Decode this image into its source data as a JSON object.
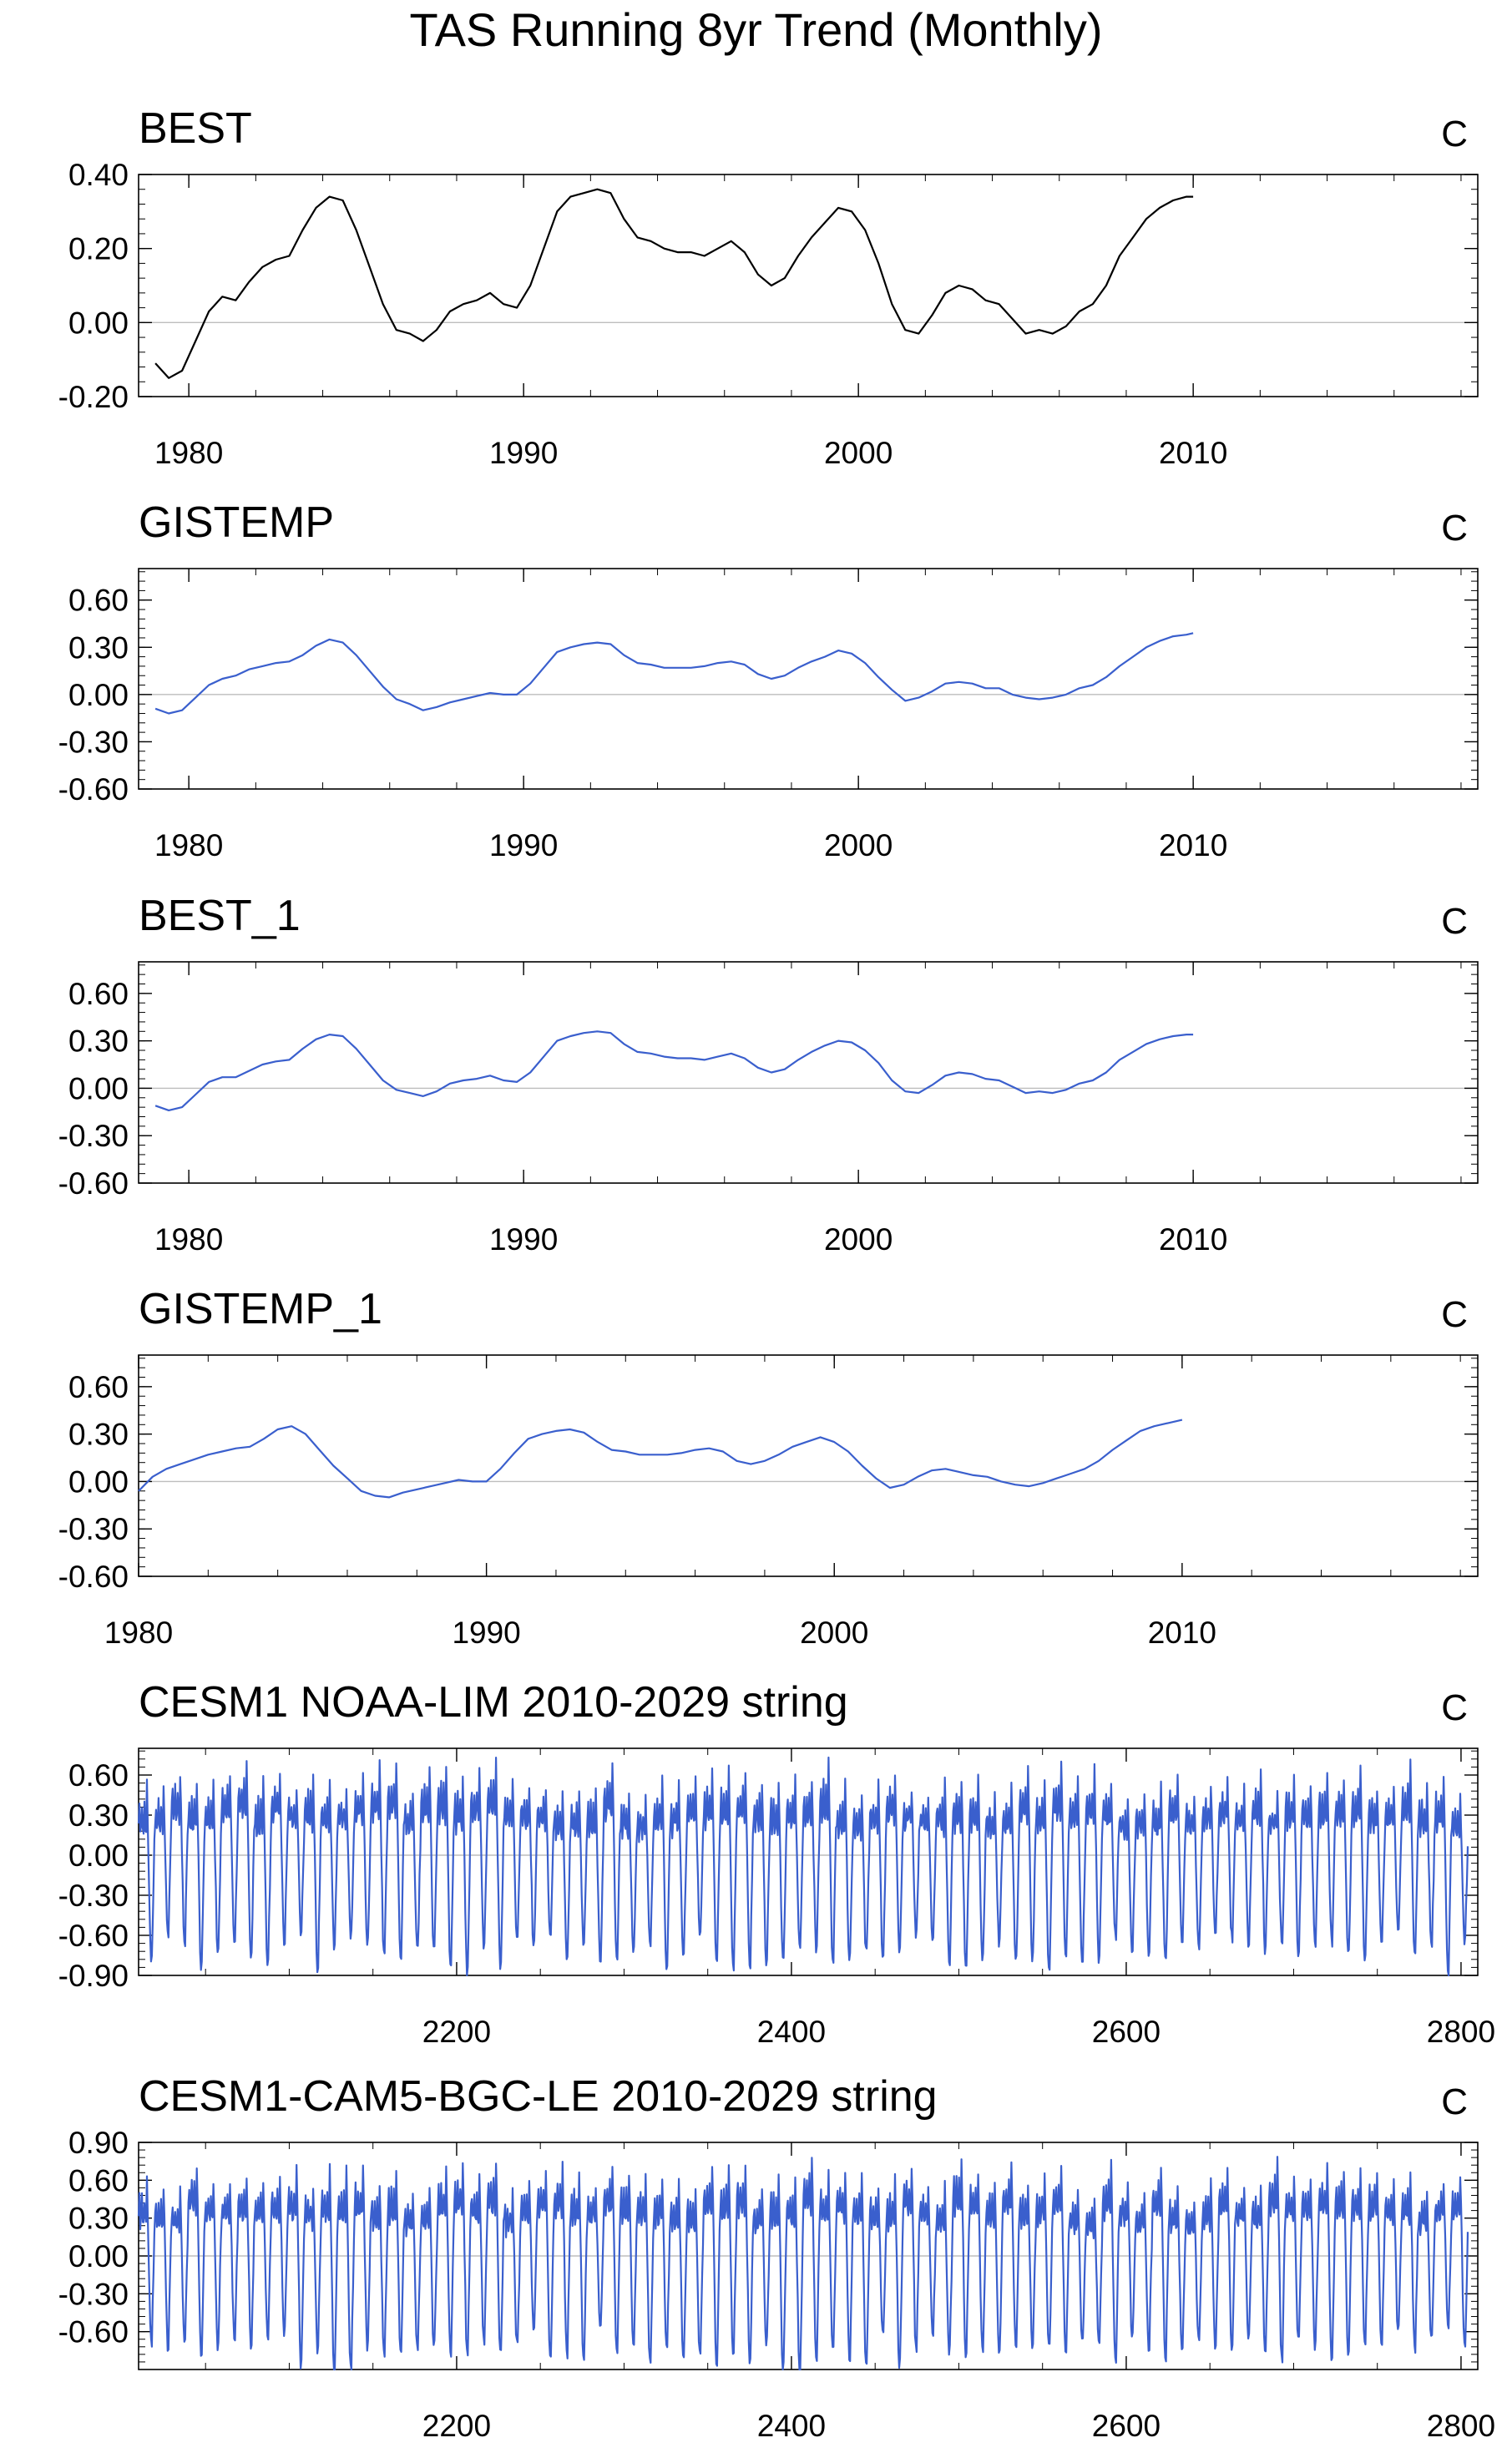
{
  "title": "TAS Running 8yr Trend (Monthly)",
  "chart_data": [
    {
      "type": "line",
      "title": "BEST",
      "units": "C",
      "xlim": [
        1978.5,
        2018.5
      ],
      "ylim": [
        -0.2,
        0.4
      ],
      "xticks": [
        1980,
        1990,
        2000,
        2010
      ],
      "xtick_labels": [
        "1980",
        "1990",
        "2000",
        "2010"
      ],
      "yticks": [
        -0.2,
        0.0,
        0.2,
        0.4
      ],
      "ytick_labels": [
        "-0.20",
        "0.00",
        "0.20",
        "0.40"
      ],
      "zero_line": true,
      "color": "#000000",
      "series": [
        {
          "x": [
            1979.0,
            1979.4,
            1979.8,
            1980.2,
            1980.6,
            1981.0,
            1981.4,
            1981.8,
            1982.2,
            1982.6,
            1983.0,
            1983.4,
            1983.8,
            1984.2,
            1984.6,
            1985.0,
            1985.4,
            1985.8,
            1986.2,
            1986.6,
            1987.0,
            1987.4,
            1987.8,
            1988.2,
            1988.6,
            1989.0,
            1989.4,
            1989.8,
            1990.2,
            1990.6,
            1991.0,
            1991.4,
            1991.8,
            1992.2,
            1992.6,
            1993.0,
            1993.4,
            1993.8,
            1994.2,
            1994.6,
            1995.0,
            1995.4,
            1995.8,
            1996.2,
            1996.6,
            1997.0,
            1997.4,
            1997.8,
            1998.2,
            1998.6,
            1999.0,
            1999.4,
            1999.8,
            2000.2,
            2000.6,
            2001.0,
            2001.4,
            2001.8,
            2002.2,
            2002.6,
            2003.0,
            2003.4,
            2003.8,
            2004.2,
            2004.6,
            2005.0,
            2005.4,
            2005.8,
            2006.2,
            2006.6,
            2007.0,
            2007.4,
            2007.8,
            2008.2,
            2008.6,
            2009.0,
            2009.4,
            2009.8,
            2010.0
          ],
          "y": [
            -0.11,
            -0.15,
            -0.13,
            -0.05,
            0.03,
            0.07,
            0.06,
            0.11,
            0.15,
            0.17,
            0.18,
            0.25,
            0.31,
            0.34,
            0.33,
            0.25,
            0.15,
            0.05,
            -0.02,
            -0.03,
            -0.05,
            -0.02,
            0.03,
            0.05,
            0.06,
            0.08,
            0.05,
            0.04,
            0.1,
            0.2,
            0.3,
            0.34,
            0.35,
            0.36,
            0.35,
            0.28,
            0.23,
            0.22,
            0.2,
            0.19,
            0.19,
            0.18,
            0.2,
            0.22,
            0.19,
            0.13,
            0.1,
            0.12,
            0.18,
            0.23,
            0.27,
            0.31,
            0.3,
            0.25,
            0.16,
            0.05,
            -0.02,
            -0.03,
            0.02,
            0.08,
            0.1,
            0.09,
            0.06,
            0.05,
            0.01,
            -0.03,
            -0.02,
            -0.03,
            -0.01,
            0.03,
            0.05,
            0.1,
            0.18,
            0.23,
            0.28,
            0.31,
            0.33,
            0.34,
            0.34
          ]
        }
      ]
    },
    {
      "type": "line",
      "title": "GISTEMP",
      "units": "C",
      "xlim": [
        1978.5,
        2018.5
      ],
      "ylim": [
        -0.6,
        0.8
      ],
      "xticks": [
        1980,
        1990,
        2000,
        2010
      ],
      "xtick_labels": [
        "1980",
        "1990",
        "2000",
        "2010"
      ],
      "yticks": [
        -0.6,
        -0.3,
        0.0,
        0.3,
        0.6
      ],
      "ytick_labels": [
        "-0.60",
        "-0.30",
        "0.00",
        "0.30",
        "0.60"
      ],
      "zero_line": true,
      "color": "#3a5fcd",
      "series": [
        {
          "x": [
            1979.0,
            1979.4,
            1979.8,
            1980.2,
            1980.6,
            1981.0,
            1981.4,
            1981.8,
            1982.2,
            1982.6,
            1983.0,
            1983.4,
            1983.8,
            1984.2,
            1984.6,
            1985.0,
            1985.4,
            1985.8,
            1986.2,
            1986.6,
            1987.0,
            1987.4,
            1987.8,
            1988.2,
            1988.6,
            1989.0,
            1989.4,
            1989.8,
            1990.2,
            1990.6,
            1991.0,
            1991.4,
            1991.8,
            1992.2,
            1992.6,
            1993.0,
            1993.4,
            1993.8,
            1994.2,
            1994.6,
            1995.0,
            1995.4,
            1995.8,
            1996.2,
            1996.6,
            1997.0,
            1997.4,
            1997.8,
            1998.2,
            1998.6,
            1999.0,
            1999.4,
            1999.8,
            2000.2,
            2000.6,
            2001.0,
            2001.4,
            2001.8,
            2002.2,
            2002.6,
            2003.0,
            2003.4,
            2003.8,
            2004.2,
            2004.6,
            2005.0,
            2005.4,
            2005.8,
            2006.2,
            2006.6,
            2007.0,
            2007.4,
            2007.8,
            2008.2,
            2008.6,
            2009.0,
            2009.4,
            2009.8,
            2010.0
          ],
          "y": [
            -0.09,
            -0.12,
            -0.1,
            -0.02,
            0.06,
            0.1,
            0.12,
            0.16,
            0.18,
            0.2,
            0.21,
            0.25,
            0.31,
            0.35,
            0.33,
            0.25,
            0.15,
            0.05,
            -0.03,
            -0.06,
            -0.1,
            -0.08,
            -0.05,
            -0.03,
            -0.01,
            0.01,
            0.0,
            0.0,
            0.07,
            0.17,
            0.27,
            0.3,
            0.32,
            0.33,
            0.32,
            0.25,
            0.2,
            0.19,
            0.17,
            0.17,
            0.17,
            0.18,
            0.2,
            0.21,
            0.19,
            0.13,
            0.1,
            0.12,
            0.17,
            0.21,
            0.24,
            0.28,
            0.26,
            0.2,
            0.11,
            0.03,
            -0.04,
            -0.02,
            0.02,
            0.07,
            0.08,
            0.07,
            0.04,
            0.04,
            0.0,
            -0.02,
            -0.03,
            -0.02,
            0.0,
            0.04,
            0.06,
            0.11,
            0.18,
            0.24,
            0.3,
            0.34,
            0.37,
            0.38,
            0.39
          ]
        }
      ]
    },
    {
      "type": "line",
      "title": "BEST_1",
      "units": "C",
      "xlim": [
        1978.5,
        2018.5
      ],
      "ylim": [
        -0.6,
        0.8
      ],
      "xticks": [
        1980,
        1990,
        2000,
        2010
      ],
      "xtick_labels": [
        "1980",
        "1990",
        "2000",
        "2010"
      ],
      "yticks": [
        -0.6,
        -0.3,
        0.0,
        0.3,
        0.6
      ],
      "ytick_labels": [
        "-0.60",
        "-0.30",
        "0.00",
        "0.30",
        "0.60"
      ],
      "zero_line": true,
      "color": "#3a5fcd",
      "series": [
        {
          "x": [
            1979.0,
            1979.4,
            1979.8,
            1980.2,
            1980.6,
            1981.0,
            1981.4,
            1981.8,
            1982.2,
            1982.6,
            1983.0,
            1983.4,
            1983.8,
            1984.2,
            1984.6,
            1985.0,
            1985.4,
            1985.8,
            1986.2,
            1986.6,
            1987.0,
            1987.4,
            1987.8,
            1988.2,
            1988.6,
            1989.0,
            1989.4,
            1989.8,
            1990.2,
            1990.6,
            1991.0,
            1991.4,
            1991.8,
            1992.2,
            1992.6,
            1993.0,
            1993.4,
            1993.8,
            1994.2,
            1994.6,
            1995.0,
            1995.4,
            1995.8,
            1996.2,
            1996.6,
            1997.0,
            1997.4,
            1997.8,
            1998.2,
            1998.6,
            1999.0,
            1999.4,
            1999.8,
            2000.2,
            2000.6,
            2001.0,
            2001.4,
            2001.8,
            2002.2,
            2002.6,
            2003.0,
            2003.4,
            2003.8,
            2004.2,
            2004.6,
            2005.0,
            2005.4,
            2005.8,
            2006.2,
            2006.6,
            2007.0,
            2007.4,
            2007.8,
            2008.2,
            2008.6,
            2009.0,
            2009.4,
            2009.8,
            2010.0
          ],
          "y": [
            -0.11,
            -0.14,
            -0.12,
            -0.04,
            0.04,
            0.07,
            0.07,
            0.11,
            0.15,
            0.17,
            0.18,
            0.25,
            0.31,
            0.34,
            0.33,
            0.25,
            0.15,
            0.05,
            -0.01,
            -0.03,
            -0.05,
            -0.02,
            0.03,
            0.05,
            0.06,
            0.08,
            0.05,
            0.04,
            0.1,
            0.2,
            0.3,
            0.33,
            0.35,
            0.36,
            0.35,
            0.28,
            0.23,
            0.22,
            0.2,
            0.19,
            0.19,
            0.18,
            0.2,
            0.22,
            0.19,
            0.13,
            0.1,
            0.12,
            0.18,
            0.23,
            0.27,
            0.3,
            0.29,
            0.24,
            0.16,
            0.05,
            -0.02,
            -0.03,
            0.02,
            0.08,
            0.1,
            0.09,
            0.06,
            0.05,
            0.01,
            -0.03,
            -0.02,
            -0.03,
            -0.01,
            0.03,
            0.05,
            0.1,
            0.18,
            0.23,
            0.28,
            0.31,
            0.33,
            0.34,
            0.34
          ]
        }
      ]
    },
    {
      "type": "line",
      "title": "GISTEMP_1",
      "units": "C",
      "xlim": [
        1980.0,
        2018.5
      ],
      "ylim": [
        -0.6,
        0.8
      ],
      "xticks": [
        1980,
        1990,
        2000,
        2010
      ],
      "xtick_labels": [
        "1980",
        "1990",
        "2000",
        "2010"
      ],
      "yticks": [
        -0.6,
        -0.3,
        0.0,
        0.3,
        0.6
      ],
      "ytick_labels": [
        "-0.60",
        "-0.30",
        "0.00",
        "0.30",
        "0.60"
      ],
      "zero_line": true,
      "color": "#3a5fcd",
      "series": [
        {
          "x": [
            1980.0,
            1980.4,
            1980.8,
            1981.2,
            1981.6,
            1982.0,
            1982.4,
            1982.8,
            1983.2,
            1983.6,
            1984.0,
            1984.4,
            1984.8,
            1985.2,
            1985.6,
            1986.0,
            1986.4,
            1986.8,
            1987.2,
            1987.6,
            1988.0,
            1988.4,
            1988.8,
            1989.2,
            1989.6,
            1990.0,
            1990.4,
            1990.8,
            1991.2,
            1991.6,
            1992.0,
            1992.4,
            1992.8,
            1993.2,
            1993.6,
            1994.0,
            1994.4,
            1994.8,
            1995.2,
            1995.6,
            1996.0,
            1996.4,
            1996.8,
            1997.2,
            1997.6,
            1998.0,
            1998.4,
            1998.8,
            1999.2,
            1999.6,
            2000.0,
            2000.4,
            2000.8,
            2001.2,
            2001.6,
            2002.0,
            2002.4,
            2002.8,
            2003.2,
            2003.6,
            2004.0,
            2004.4,
            2004.8,
            2005.2,
            2005.6,
            2006.0,
            2006.4,
            2006.8,
            2007.2,
            2007.6,
            2008.0,
            2008.4,
            2008.8,
            2009.2,
            2009.6,
            2010.0
          ],
          "y": [
            -0.06,
            0.03,
            0.08,
            0.11,
            0.14,
            0.17,
            0.19,
            0.21,
            0.22,
            0.27,
            0.33,
            0.35,
            0.3,
            0.2,
            0.1,
            0.02,
            -0.06,
            -0.09,
            -0.1,
            -0.07,
            -0.05,
            -0.03,
            -0.01,
            0.01,
            0.0,
            0.0,
            0.08,
            0.18,
            0.27,
            0.3,
            0.32,
            0.33,
            0.31,
            0.25,
            0.2,
            0.19,
            0.17,
            0.17,
            0.17,
            0.18,
            0.2,
            0.21,
            0.19,
            0.13,
            0.11,
            0.13,
            0.17,
            0.22,
            0.25,
            0.28,
            0.25,
            0.19,
            0.1,
            0.02,
            -0.04,
            -0.02,
            0.03,
            0.07,
            0.08,
            0.06,
            0.04,
            0.03,
            0.0,
            -0.02,
            -0.03,
            -0.01,
            0.02,
            0.05,
            0.08,
            0.13,
            0.2,
            0.26,
            0.32,
            0.35,
            0.37,
            0.39
          ]
        }
      ]
    },
    {
      "type": "line",
      "title": "CESM1 NOAA-LIM 2010-2029 string",
      "units": "C",
      "xlim": [
        2010,
        2810
      ],
      "ylim": [
        -0.9,
        0.8
      ],
      "xticks": [
        2200,
        2400,
        2600,
        2800
      ],
      "xtick_labels": [
        "2200",
        "2400",
        "2600",
        "2800"
      ],
      "yticks": [
        -0.9,
        -0.6,
        -0.3,
        0.0,
        0.3,
        0.6
      ],
      "ytick_labels": [
        "-0.90",
        "-0.60",
        "-0.30",
        "0.00",
        "0.30",
        "0.60"
      ],
      "zero_line": true,
      "color": "#3a5fcd",
      "series": [
        {
          "x_start": 2010,
          "x_end": 2804,
          "n_points": 1600,
          "cycle_length": 20,
          "upper_level": 0.3,
          "lower_level": -0.7,
          "note": "20-step oscillating runs, series values reproduced by generator"
        }
      ]
    },
    {
      "type": "line",
      "title": "CESM1-CAM5-BGC-LE 2010-2029 string",
      "units": "C",
      "xlim": [
        2010,
        2810
      ],
      "ylim": [
        -0.9,
        0.9
      ],
      "xticks": [
        2200,
        2400,
        2600,
        2800
      ],
      "xtick_labels": [
        "2200",
        "2400",
        "2600",
        "2800"
      ],
      "yticks": [
        -0.6,
        -0.3,
        0.0,
        0.3,
        0.6,
        0.9
      ],
      "ytick_labels": [
        "-0.60",
        "-0.30",
        "0.00",
        "0.30",
        "0.60",
        "0.90"
      ],
      "zero_line": true,
      "color": "#3a5fcd",
      "series": [
        {
          "x_start": 2010,
          "x_end": 2804,
          "n_points": 1600,
          "cycle_length": 20,
          "upper_level": 0.35,
          "lower_level": -0.72
        }
      ]
    }
  ]
}
